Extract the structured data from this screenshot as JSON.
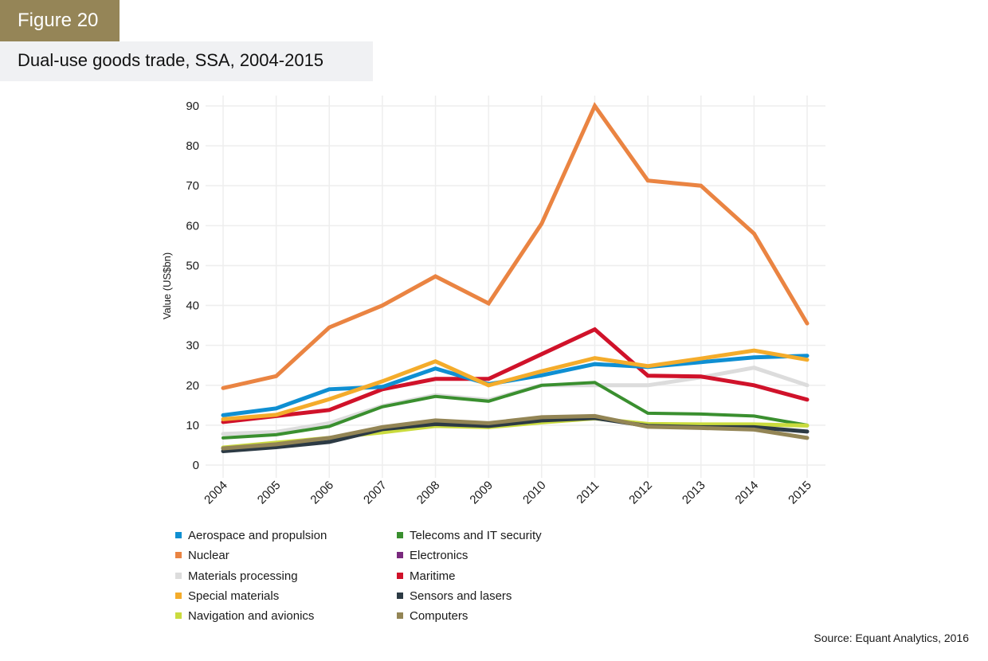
{
  "header": {
    "figure_label": "Figure 20",
    "title": "Dual-use goods trade, SSA, 2004-2015"
  },
  "source": "Source: Equant Analytics, 2016",
  "chart_data": {
    "type": "line",
    "title": "Dual-use goods trade, SSA, 2004-2015",
    "xlabel": "",
    "ylabel": "Value (US$bn)",
    "ylim": [
      0,
      90
    ],
    "yticks": [
      0,
      10,
      20,
      30,
      40,
      50,
      60,
      70,
      80,
      90
    ],
    "grid": true,
    "legend_position": "bottom",
    "x": [
      "2004",
      "2005",
      "2006",
      "2007",
      "2008",
      "2009",
      "2010",
      "2011",
      "2012",
      "2013",
      "2014",
      "2015"
    ],
    "series": [
      {
        "name": "Aerospace and propulsion",
        "color": "#0f8fd2",
        "values": [
          12.5,
          14.2,
          19.0,
          19.6,
          24.2,
          20.3,
          22.5,
          25.3,
          24.6,
          25.8,
          27.0,
          27.4
        ]
      },
      {
        "name": "Nuclear",
        "color": "#ea8442",
        "values": [
          19.3,
          22.3,
          34.5,
          40.0,
          47.3,
          40.5,
          60.5,
          90.0,
          71.3,
          70.0,
          58.0,
          35.5
        ]
      },
      {
        "name": "Materials processing",
        "color": "#dcdcdc",
        "values": [
          7.8,
          8.3,
          10.5,
          14.8,
          17.5,
          16.3,
          20.0,
          20.0,
          20.0,
          22.0,
          24.4,
          20.0
        ]
      },
      {
        "name": "Special materials",
        "color": "#f4ac2b",
        "values": [
          11.5,
          12.6,
          16.5,
          21.0,
          26.0,
          20.0,
          23.5,
          26.8,
          24.8,
          26.7,
          28.7,
          26.4
        ]
      },
      {
        "name": "Navigation and avionics",
        "color": "#cadb3e",
        "values": [
          4.4,
          5.6,
          6.8,
          8.2,
          9.8,
          9.5,
          10.7,
          11.7,
          10.3,
          10.2,
          10.2,
          9.9
        ]
      },
      {
        "name": "Telecoms and IT security",
        "color": "#3a8f2f",
        "values": [
          6.8,
          7.6,
          9.7,
          14.6,
          17.2,
          16.0,
          20.0,
          20.7,
          13.0,
          12.8,
          12.3,
          10.0
        ]
      },
      {
        "name": "Electronics",
        "color": "#7a2a7e",
        "values": []
      },
      {
        "name": "Maritime",
        "color": "#d0122a",
        "values": [
          10.8,
          12.3,
          13.8,
          19.0,
          21.6,
          21.6,
          27.8,
          34.0,
          22.4,
          22.2,
          20.0,
          16.4
        ]
      },
      {
        "name": "Sensors and lasers",
        "color": "#2c3a44",
        "values": [
          3.5,
          4.5,
          5.8,
          9.0,
          10.3,
          9.8,
          11.2,
          11.8,
          9.8,
          9.5,
          9.5,
          8.4
        ]
      },
      {
        "name": "Computers",
        "color": "#938555",
        "values": [
          4.2,
          5.2,
          6.8,
          9.5,
          11.2,
          10.5,
          12.0,
          12.3,
          9.6,
          9.3,
          8.9,
          6.8
        ]
      }
    ]
  }
}
